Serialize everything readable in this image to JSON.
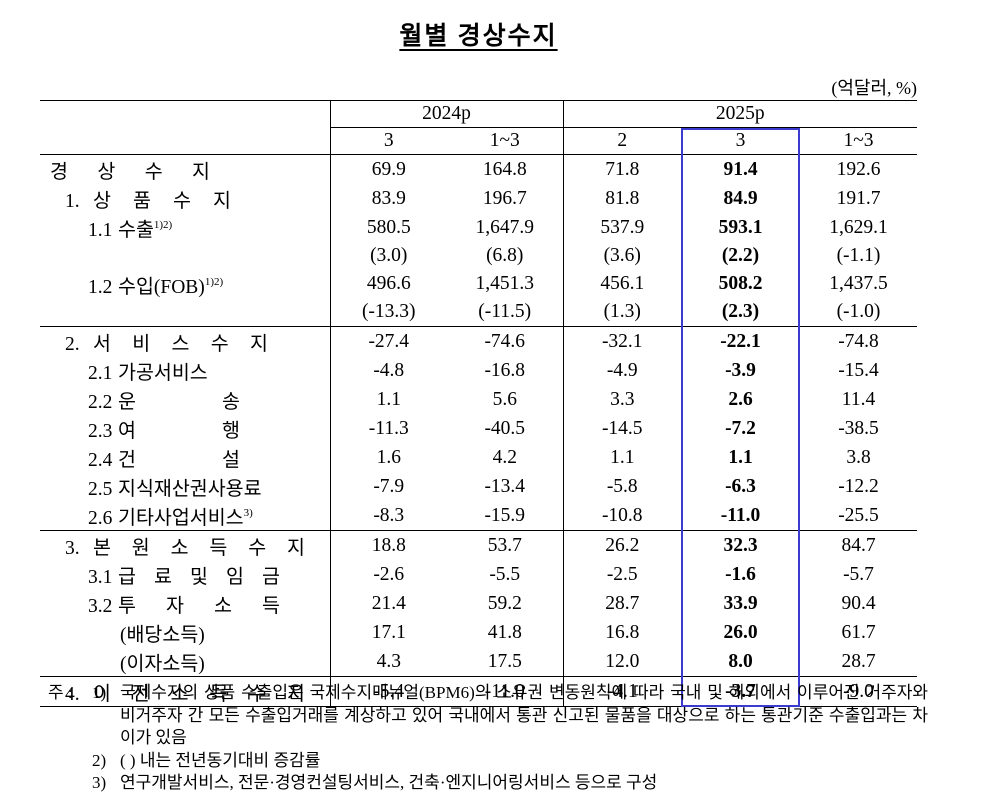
{
  "title": "월별 경상수지",
  "unit": "(억달러, %)",
  "header": {
    "groups": [
      "2024p",
      "2025p"
    ],
    "columns": [
      "3",
      "1~3",
      "2",
      "3",
      "1~3"
    ]
  },
  "table": {
    "sections": [
      {
        "rows": [
          {
            "name": "경 상 수 지",
            "values": [
              "69.9",
              "164.8",
              "71.8",
              "91.4",
              "192.6"
            ]
          },
          {
            "num": "1.",
            "name": "상 품 수 지",
            "values": [
              "83.9",
              "196.7",
              "81.8",
              "84.9",
              "191.7"
            ]
          },
          {
            "num": "1.1",
            "name": "수출",
            "sup": "1)2)",
            "values": [
              "580.5",
              "1,647.9",
              "537.9",
              "593.1",
              "1,629.1"
            ]
          },
          {
            "values": [
              "(3.0)",
              "(6.8)",
              "(3.6)",
              "(2.2)",
              "(-1.1)"
            ]
          },
          {
            "num": "1.2",
            "name": "수입(FOB)",
            "sup": "1)2)",
            "values": [
              "496.6",
              "1,451.3",
              "456.1",
              "508.2",
              "1,437.5"
            ]
          },
          {
            "values": [
              "(-13.3)",
              "(-11.5)",
              "(1.3)",
              "(2.3)",
              "(-1.0)"
            ]
          }
        ]
      },
      {
        "rows": [
          {
            "num": "2.",
            "name": "서 비 스 수 지",
            "values": [
              "-27.4",
              "-74.6",
              "-32.1",
              "-22.1",
              "-74.8"
            ]
          },
          {
            "num": "2.1",
            "name": "가공서비스",
            "values": [
              "-4.8",
              "-16.8",
              "-4.9",
              "-3.9",
              "-15.4"
            ]
          },
          {
            "num": "2.2",
            "name": "운 송",
            "values": [
              "1.1",
              "5.6",
              "3.3",
              "2.6",
              "11.4"
            ]
          },
          {
            "num": "2.3",
            "name": "여 행",
            "values": [
              "-11.3",
              "-40.5",
              "-14.5",
              "-7.2",
              "-38.5"
            ]
          },
          {
            "num": "2.4",
            "name": "건 설",
            "values": [
              "1.6",
              "4.2",
              "1.1",
              "1.1",
              "3.8"
            ]
          },
          {
            "num": "2.5",
            "name": "지식재산권사용료",
            "values": [
              "-7.9",
              "-13.4",
              "-5.8",
              "-6.3",
              "-12.2"
            ]
          },
          {
            "num": "2.6",
            "name": "기타사업서비스",
            "sup": "3)",
            "values": [
              "-8.3",
              "-15.9",
              "-10.8",
              "-11.0",
              "-25.5"
            ]
          }
        ]
      },
      {
        "rows": [
          {
            "num": "3.",
            "name": "본 원 소 득 수 지",
            "values": [
              "18.8",
              "53.7",
              "26.2",
              "32.3",
              "84.7"
            ]
          },
          {
            "num": "3.1",
            "name": "급 료 및 임 금",
            "values": [
              "-2.6",
              "-5.5",
              "-2.5",
              "-1.6",
              "-5.7"
            ]
          },
          {
            "num": "3.2",
            "name": "투 자 소 득",
            "values": [
              "21.4",
              "59.2",
              "28.7",
              "33.9",
              "90.4"
            ]
          },
          {
            "name": "(배당소득)",
            "values": [
              "17.1",
              "41.8",
              "16.8",
              "26.0",
              "61.7"
            ]
          },
          {
            "name": "(이자소득)",
            "values": [
              "4.3",
              "17.5",
              "12.0",
              "8.0",
              "28.7"
            ]
          }
        ]
      },
      {
        "rows": [
          {
            "num": "4.",
            "name": "이 전 소 득 수 지",
            "values": [
              "-5.4",
              "-11.0",
              "-4.1",
              "-3.7",
              "-9.0"
            ]
          }
        ]
      }
    ]
  },
  "notes": {
    "label": "주 :",
    "items": [
      {
        "num": "1)",
        "text": "국제수지의 상품 수출입은 국제수지매뉴얼(BPM6)의 소유권 변동원칙에 따라 국내 및 해외에서 이루어진 거주자와 비거주자 간 모든 수출입거래를 계상하고 있어 국내에서 통관 신고된 물품을 대상으로 하는 통관기준 수출입과는 차이가 있음"
      },
      {
        "num": "2)",
        "text": "( ) 내는 전년동기대비 증감률"
      },
      {
        "num": "3)",
        "text": "연구개발서비스, 전문·경영컨설팅서비스, 건축·엔지니어링서비스 등으로 구성"
      }
    ]
  }
}
